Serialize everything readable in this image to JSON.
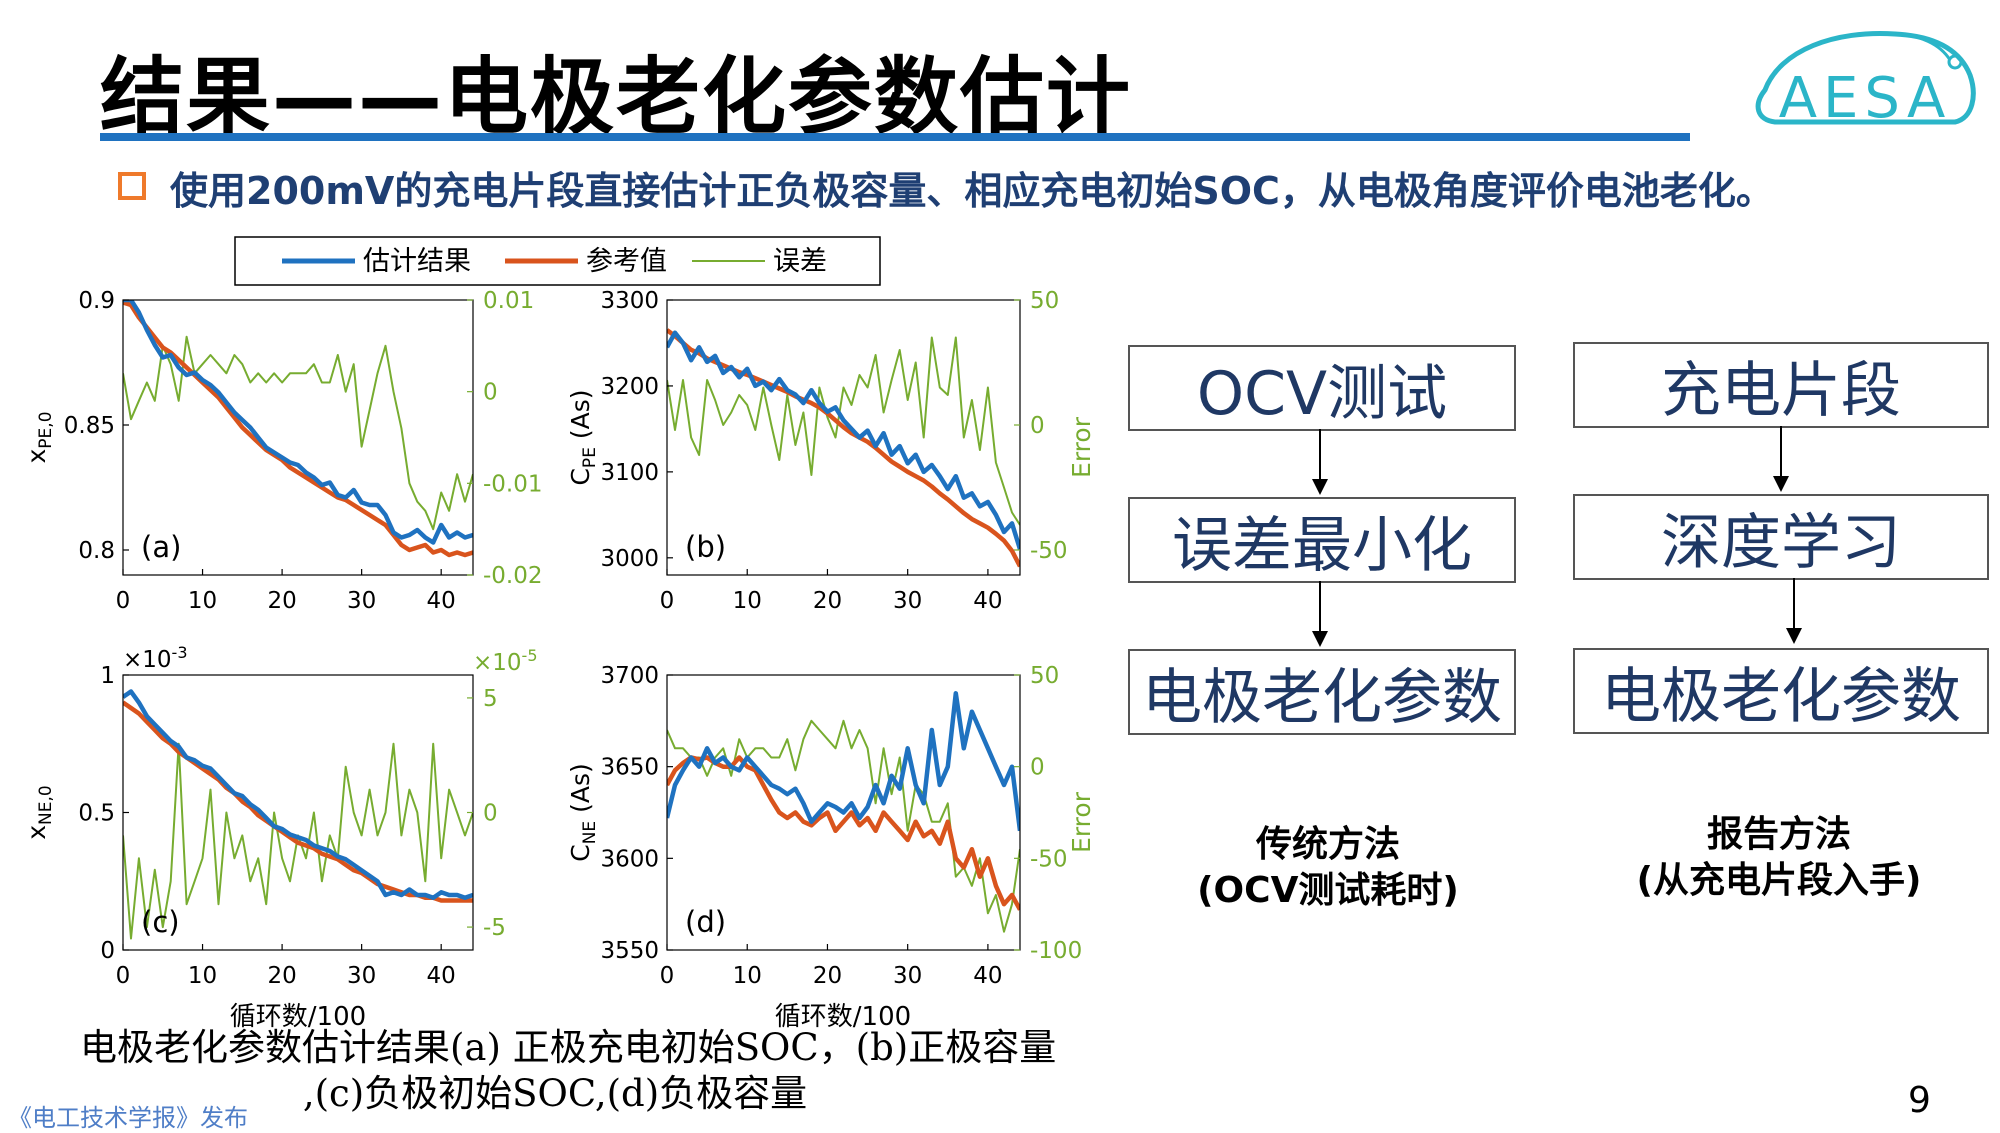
{
  "slide": {
    "title": "结果——电极老化参数估计",
    "bullet": "使用200mV的充电片段直接估计正负极容量、相应充电初始SOC，从电极角度评价电池老化。",
    "logo_text": "AESA",
    "caption_line1": "电极老化参数估计结果(a) 正极充电初始SOC，(b)正极容量",
    "caption_line2": ",(c)负极初始SOC,(d)负极容量",
    "source": "《电工技术学报》发布",
    "page_number": "9"
  },
  "colors": {
    "estimate": "#1f72c0",
    "reference": "#d9541d",
    "error": "#77ac30",
    "title_rule": "#1f72c0",
    "bullet_box": "#ef7a2b",
    "bullet_text": "#1f3f73",
    "flow_text": "#1f3864"
  },
  "flowchart": {
    "left": [
      "OCV测试",
      "误差最小化",
      "电极老化参数"
    ],
    "right": [
      "充电片段",
      "深度学习",
      "电极老化参数"
    ],
    "left_label": [
      "传统方法",
      "(OCV测试耗时)"
    ],
    "right_label": [
      "报告方法",
      "(从充电片段入手)"
    ]
  },
  "chart_data": [
    {
      "type": "line",
      "panel": "(a)",
      "ylabel": "x_{PE,0}",
      "xlim": [
        0,
        44
      ],
      "ylim": [
        0.79,
        0.9
      ],
      "xticks": [
        "0",
        "10",
        "20",
        "30",
        "40"
      ],
      "yticks": [
        "0.8",
        "0.85",
        "0.9"
      ],
      "y2lim": [
        -0.02,
        0.01
      ],
      "y2ticks": [
        "-0.02",
        "-0.01",
        "0",
        "0.01"
      ],
      "y2label": "",
      "x": [
        0,
        1,
        2,
        3,
        4,
        5,
        6,
        7,
        8,
        9,
        10,
        11,
        12,
        13,
        14,
        15,
        16,
        17,
        18,
        19,
        20,
        21,
        22,
        23,
        24,
        25,
        26,
        27,
        28,
        29,
        30,
        31,
        32,
        33,
        34,
        35,
        36,
        37,
        38,
        39,
        40,
        41,
        42,
        43,
        44
      ],
      "series": [
        {
          "name": "估计结果",
          "axis": "left",
          "values": [
            0.9,
            0.9,
            0.895,
            0.888,
            0.882,
            0.877,
            0.878,
            0.873,
            0.87,
            0.871,
            0.868,
            0.866,
            0.863,
            0.859,
            0.855,
            0.852,
            0.849,
            0.845,
            0.841,
            0.839,
            0.837,
            0.835,
            0.834,
            0.831,
            0.829,
            0.826,
            0.827,
            0.822,
            0.821,
            0.824,
            0.819,
            0.818,
            0.818,
            0.814,
            0.807,
            0.805,
            0.806,
            0.808,
            0.805,
            0.803,
            0.81,
            0.805,
            0.807,
            0.805,
            0.806
          ]
        },
        {
          "name": "参考值",
          "axis": "left",
          "values": [
            0.899,
            0.898,
            0.893,
            0.889,
            0.885,
            0.881,
            0.879,
            0.876,
            0.873,
            0.87,
            0.867,
            0.864,
            0.861,
            0.857,
            0.853,
            0.849,
            0.846,
            0.843,
            0.84,
            0.838,
            0.836,
            0.833,
            0.831,
            0.829,
            0.827,
            0.825,
            0.823,
            0.821,
            0.82,
            0.818,
            0.816,
            0.814,
            0.812,
            0.81,
            0.806,
            0.802,
            0.8,
            0.801,
            0.802,
            0.799,
            0.8,
            0.798,
            0.799,
            0.798,
            0.799
          ]
        },
        {
          "name": "误差",
          "axis": "right",
          "values": [
            0.002,
            -0.003,
            -0.001,
            0.001,
            -0.001,
            0.005,
            0.003,
            -0.001,
            0.006,
            0.002,
            0.003,
            0.004,
            0.003,
            0.002,
            0.004,
            0.003,
            0.001,
            0.002,
            0.001,
            0.002,
            0.001,
            0.002,
            0.002,
            0.002,
            0.003,
            0.001,
            0.001,
            0.004,
            0.0,
            0.003,
            -0.006,
            -0.002,
            0.002,
            0.005,
            0.0,
            -0.004,
            -0.01,
            -0.012,
            -0.013,
            -0.015,
            -0.011,
            -0.013,
            -0.009,
            -0.012,
            -0.009
          ]
        }
      ]
    },
    {
      "type": "line",
      "panel": "(b)",
      "ylabel": "C_{PE} (As)",
      "xlim": [
        0,
        44
      ],
      "ylim": [
        2980,
        3300
      ],
      "xticks": [
        "0",
        "10",
        "20",
        "30",
        "40"
      ],
      "yticks": [
        "3000",
        "3100",
        "3200",
        "3300"
      ],
      "y2lim": [
        -60,
        50
      ],
      "y2ticks": [
        "-50",
        "0",
        "50"
      ],
      "y2label": "Error",
      "x": [
        0,
        1,
        2,
        3,
        4,
        5,
        6,
        7,
        8,
        9,
        10,
        11,
        12,
        13,
        14,
        15,
        16,
        17,
        18,
        19,
        20,
        21,
        22,
        23,
        24,
        25,
        26,
        27,
        28,
        29,
        30,
        31,
        32,
        33,
        34,
        35,
        36,
        37,
        38,
        39,
        40,
        41,
        42,
        43,
        44
      ],
      "series": [
        {
          "name": "估计结果",
          "axis": "left",
          "values": [
            3245,
            3262,
            3250,
            3230,
            3245,
            3228,
            3235,
            3215,
            3222,
            3210,
            3220,
            3200,
            3205,
            3195,
            3208,
            3195,
            3190,
            3180,
            3195,
            3180,
            3170,
            3175,
            3160,
            3150,
            3140,
            3148,
            3130,
            3145,
            3120,
            3130,
            3110,
            3120,
            3100,
            3108,
            3095,
            3080,
            3095,
            3070,
            3075,
            3060,
            3065,
            3050,
            3030,
            3040,
            3010
          ]
        },
        {
          "name": "参考值",
          "axis": "left",
          "values": [
            3265,
            3258,
            3250,
            3242,
            3238,
            3232,
            3228,
            3224,
            3220,
            3216,
            3213,
            3209,
            3205,
            3201,
            3197,
            3193,
            3188,
            3184,
            3180,
            3175,
            3168,
            3160,
            3152,
            3145,
            3140,
            3135,
            3128,
            3120,
            3112,
            3106,
            3100,
            3095,
            3090,
            3083,
            3075,
            3068,
            3060,
            3052,
            3045,
            3040,
            3035,
            3028,
            3020,
            3008,
            2990
          ]
        },
        {
          "name": "误差",
          "axis": "right",
          "values": [
            18,
            -2,
            18,
            -5,
            -12,
            18,
            10,
            0,
            5,
            12,
            8,
            -2,
            15,
            0,
            -14,
            12,
            -8,
            5,
            -20,
            15,
            3,
            -5,
            15,
            8,
            20,
            15,
            28,
            5,
            18,
            30,
            10,
            25,
            -5,
            35,
            15,
            12,
            35,
            -5,
            10,
            -10,
            15,
            -15,
            -25,
            -35,
            -40
          ]
        }
      ]
    },
    {
      "type": "line",
      "panel": "(c)",
      "ylabel": "x_{NE,0}",
      "ymultiplier_left": "×10^-3",
      "ymultiplier_right": "×10^-5",
      "xlim": [
        0,
        44
      ],
      "ylim": [
        0,
        1
      ],
      "xticks": [
        "0",
        "10",
        "20",
        "30",
        "40"
      ],
      "yticks": [
        "0",
        "0.5",
        "1"
      ],
      "y2lim": [
        -6,
        6
      ],
      "y2ticks": [
        "-5",
        "0",
        "5"
      ],
      "y2label": "",
      "x": [
        0,
        1,
        2,
        3,
        4,
        5,
        6,
        7,
        8,
        9,
        10,
        11,
        12,
        13,
        14,
        15,
        16,
        17,
        18,
        19,
        20,
        21,
        22,
        23,
        24,
        25,
        26,
        27,
        28,
        29,
        30,
        31,
        32,
        33,
        34,
        35,
        36,
        37,
        38,
        39,
        40,
        41,
        42,
        43,
        44
      ],
      "series": [
        {
          "name": "估计结果",
          "axis": "left",
          "values": [
            0.92,
            0.94,
            0.9,
            0.85,
            0.82,
            0.79,
            0.76,
            0.74,
            0.7,
            0.69,
            0.67,
            0.66,
            0.63,
            0.6,
            0.57,
            0.56,
            0.53,
            0.51,
            0.48,
            0.45,
            0.44,
            0.42,
            0.41,
            0.4,
            0.38,
            0.37,
            0.36,
            0.34,
            0.33,
            0.31,
            0.29,
            0.27,
            0.25,
            0.2,
            0.21,
            0.2,
            0.22,
            0.2,
            0.2,
            0.19,
            0.21,
            0.2,
            0.2,
            0.19,
            0.2
          ]
        },
        {
          "name": "参考值",
          "axis": "left",
          "values": [
            0.9,
            0.88,
            0.86,
            0.83,
            0.8,
            0.77,
            0.75,
            0.72,
            0.7,
            0.68,
            0.66,
            0.64,
            0.62,
            0.59,
            0.57,
            0.54,
            0.52,
            0.49,
            0.47,
            0.45,
            0.43,
            0.41,
            0.39,
            0.38,
            0.37,
            0.35,
            0.34,
            0.33,
            0.31,
            0.29,
            0.28,
            0.26,
            0.24,
            0.23,
            0.22,
            0.21,
            0.2,
            0.2,
            0.19,
            0.19,
            0.18,
            0.18,
            0.18,
            0.18,
            0.18
          ]
        },
        {
          "name": "误差",
          "axis": "right",
          "values": [
            -1,
            -5.5,
            -2,
            -5,
            -2.5,
            -5,
            -3,
            3,
            -4,
            -3,
            -2,
            1,
            -4,
            0,
            -2,
            -1,
            -3,
            -2,
            -4,
            0,
            -2,
            -3,
            -1,
            -2,
            0,
            -3,
            -1,
            -2,
            2,
            0,
            -1,
            1,
            -1,
            0,
            3,
            -1,
            1,
            0,
            -3,
            3,
            -2,
            1,
            0,
            -1,
            0
          ]
        }
      ]
    },
    {
      "type": "line",
      "panel": "(d)",
      "ylabel": "C_{NE} (As)",
      "xlim": [
        0,
        44
      ],
      "ylim": [
        3550,
        3700
      ],
      "xticks": [
        "0",
        "10",
        "20",
        "30",
        "40"
      ],
      "yticks": [
        "3550",
        "3600",
        "3650",
        "3700"
      ],
      "y2lim": [
        -100,
        50
      ],
      "y2ticks": [
        "-100",
        "-50",
        "0",
        "50"
      ],
      "y2label": "Error",
      "x": [
        0,
        1,
        2,
        3,
        4,
        5,
        6,
        7,
        8,
        9,
        10,
        11,
        12,
        13,
        14,
        15,
        16,
        17,
        18,
        19,
        20,
        21,
        22,
        23,
        24,
        25,
        26,
        27,
        28,
        29,
        30,
        31,
        32,
        33,
        34,
        35,
        36,
        37,
        38,
        39,
        40,
        41,
        42,
        43,
        44
      ],
      "series": [
        {
          "name": "估计结果",
          "axis": "left",
          "values": [
            3622,
            3640,
            3648,
            3655,
            3650,
            3660,
            3652,
            3655,
            3650,
            3648,
            3655,
            3650,
            3645,
            3640,
            3638,
            3635,
            3638,
            3630,
            3620,
            3625,
            3630,
            3628,
            3625,
            3630,
            3622,
            3628,
            3640,
            3630,
            3645,
            3638,
            3660,
            3640,
            3630,
            3670,
            3640,
            3650,
            3690,
            3660,
            3680,
            3670,
            3660,
            3650,
            3640,
            3650,
            3615
          ]
        },
        {
          "name": "参考值",
          "axis": "left",
          "values": [
            3640,
            3648,
            3652,
            3655,
            3654,
            3655,
            3652,
            3650,
            3650,
            3655,
            3650,
            3648,
            3640,
            3632,
            3625,
            3622,
            3625,
            3620,
            3618,
            3622,
            3625,
            3615,
            3620,
            3625,
            3618,
            3622,
            3615,
            3625,
            3620,
            3615,
            3610,
            3620,
            3612,
            3615,
            3608,
            3620,
            3600,
            3595,
            3605,
            3590,
            3600,
            3585,
            3575,
            3580,
            3572
          ]
        },
        {
          "name": "误差",
          "axis": "right",
          "values": [
            20,
            10,
            10,
            5,
            5,
            -5,
            5,
            10,
            -5,
            15,
            5,
            10,
            10,
            5,
            5,
            15,
            -2,
            15,
            25,
            20,
            15,
            10,
            25,
            10,
            20,
            10,
            -20,
            10,
            -15,
            5,
            -35,
            -10,
            -15,
            -30,
            -30,
            -20,
            -60,
            -55,
            -65,
            -50,
            -80,
            -70,
            -90,
            -75,
            -45
          ]
        }
      ]
    }
  ]
}
